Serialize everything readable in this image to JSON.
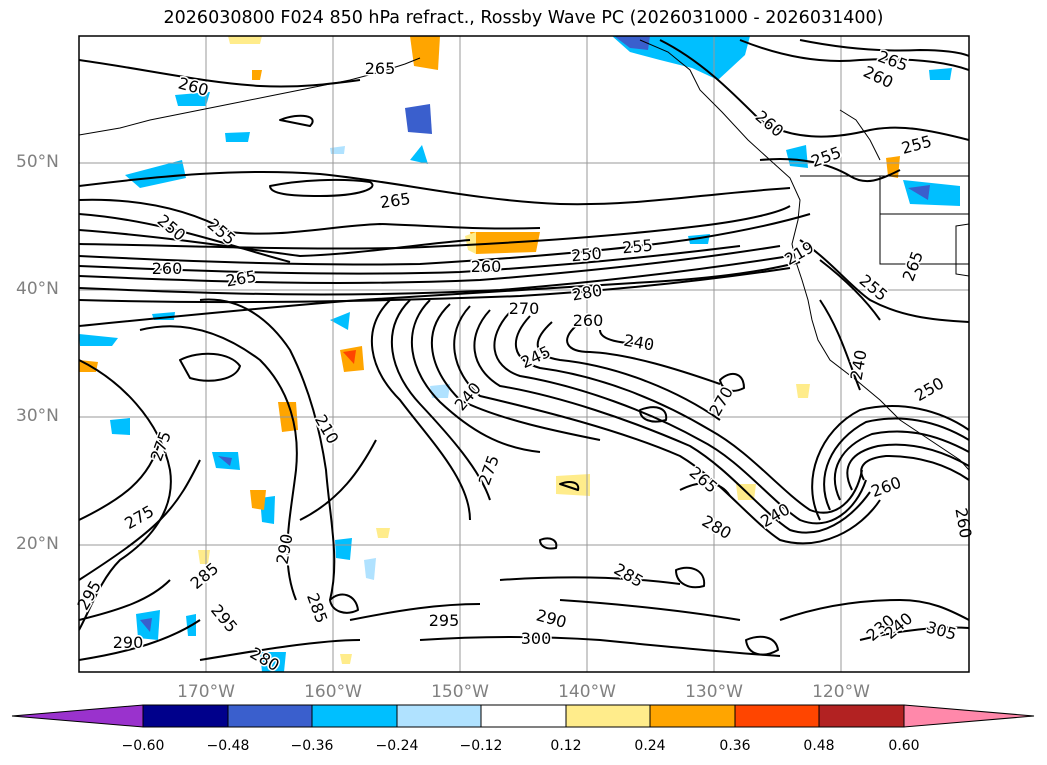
{
  "title": "2026030800 F024 850 hPa refract., Rossby Wave PC (2026031000 - 2026031400)",
  "map": {
    "lat_labels": [
      "50°N",
      "40°N",
      "30°N",
      "20°N"
    ],
    "lon_labels": [
      "170°W",
      "160°W",
      "150°W",
      "140°W",
      "130°W",
      "120°W"
    ],
    "contour_labels": [
      "265",
      "260",
      "265",
      "260",
      "260",
      "255",
      "255",
      "265",
      "250",
      "255",
      "260",
      "265",
      "260",
      "250",
      "255",
      "219",
      "265",
      "270",
      "280",
      "260",
      "255",
      "240",
      "245",
      "240",
      "240",
      "270",
      "275",
      "210",
      "275",
      "275",
      "290",
      "295",
      "285",
      "285",
      "295",
      "290",
      "280",
      "265",
      "280",
      "240",
      "260",
      "285",
      "290",
      "295",
      "300",
      "230",
      "305",
      "250",
      "260",
      "240"
    ]
  },
  "colorbar": {
    "ticks": [
      "−0.60",
      "−0.48",
      "−0.36",
      "−0.24",
      "−0.12",
      "0.12",
      "0.24",
      "0.36",
      "0.48",
      "0.60"
    ],
    "colors": [
      "#9a32cd",
      "#00008b",
      "#3a5fcd",
      "#00bfff",
      "#b0e2ff",
      "#ffffff",
      "#ffec8b",
      "#ffa500",
      "#ff4500",
      "#b22222",
      "#ff88aa"
    ]
  }
}
